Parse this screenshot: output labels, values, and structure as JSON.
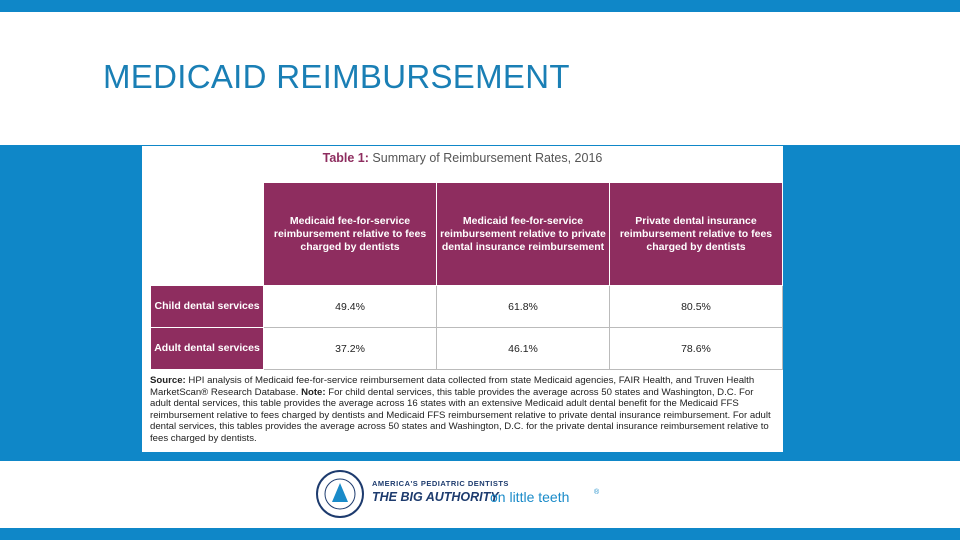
{
  "header": {
    "title": "MEDICAID REIMBURSEMENT"
  },
  "table": {
    "caption_label": "Table 1:",
    "caption": "Summary of Reimbursement Rates, 2016",
    "columns": [
      "Medicaid fee-for-service reimbursement relative to fees charged by dentists",
      "Medicaid fee-for-service reimbursement relative to private dental insurance reimbursement",
      "Private dental insurance reimbursement relative to fees charged by dentists"
    ],
    "rows": [
      [
        "Child dental services",
        "49.4%",
        "61.8%",
        "80.5%"
      ],
      [
        "Adult dental services",
        "37.2%",
        "46.1%",
        "78.6%"
      ]
    ],
    "source_label": "Source:",
    "source_text": "HPI analysis of Medicaid fee-for-service reimbursement data collected from state Medicaid agencies, FAIR Health, and Truven Health MarketScan® Research Database.",
    "note_label": "Note:",
    "note_text": "For child dental services, this table provides the average across 50 states and Washington, D.C. For adult dental services, this table provides the average across 16 states with an extensive Medicaid adult dental benefit for the Medicaid FFS reimbursement relative to fees charged by dentists and Medicaid FFS reimbursement relative to private dental insurance reimbursement. For adult dental services, this tables provides the average across 50 states and Washington, D.C. for the private dental insurance reimbursement relative to fees charged by dentists."
  },
  "logo": {
    "line1": "AMERICA'S PEDIATRIC DENTISTS",
    "line2": "THE BIG AUTHORITY",
    "line3": "on little teeth",
    "mark": "®"
  }
}
